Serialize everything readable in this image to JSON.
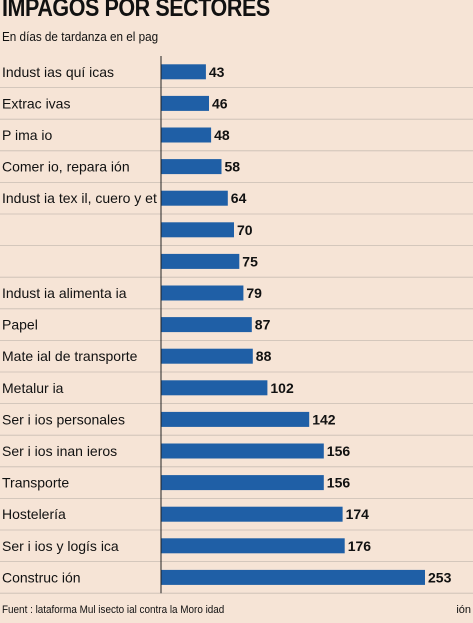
{
  "chart_data": {
    "type": "bar",
    "orientation": "horizontal",
    "title": "IMPAGOS POR SECTORES",
    "subtitle": "En días de tardanza en el pag",
    "categories": [
      "Indust ias quí icas",
      "Extrac ivas",
      "P ima io",
      "Comer io, repara ión",
      "Indust ia tex il, cuero y et .",
      "",
      "",
      "Indust ia alimenta ia",
      "Papel",
      "Mate ial de transporte",
      "Metalur ia",
      "Ser i ios personales",
      "Ser i ios inan ieros",
      "Transporte",
      "Hostelería",
      "Ser i ios y logís ica",
      "Construc ión"
    ],
    "values": [
      43,
      46,
      48,
      58,
      64,
      70,
      75,
      79,
      87,
      88,
      102,
      142,
      156,
      156,
      174,
      176,
      253
    ],
    "xlim": [
      0,
      253
    ],
    "bar_color": "#1f5fa6",
    "background_color": "#f6e4d6",
    "grid": false
  },
  "footer": {
    "source": "Fuent :  lataforma Mul isecto ial contra la Moro  idad",
    "credit": "ión"
  }
}
